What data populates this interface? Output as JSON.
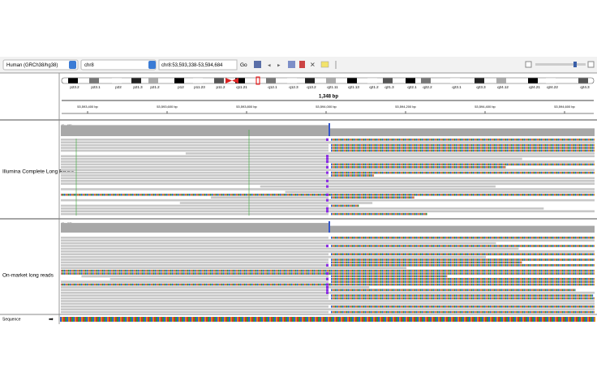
{
  "toolbar": {
    "genome": "Human (GRCh38/hg38)",
    "chromosome": "chr8",
    "locus": "chr8:53,593,338-53,594,684",
    "go": "Go"
  },
  "ideogram": {
    "bands": [
      "p23.2",
      "p23.1",
      "p22",
      "p21.3",
      "p21.2",
      "p12",
      "p11.23",
      "p11.2",
      "q11.21",
      "q12.1",
      "q12.3",
      "q13.2",
      "q21.11",
      "q21.13",
      "q21.2",
      "q21.3",
      "q22.1",
      "q22.2",
      "q23.1",
      "q23.3",
      "q24.12",
      "q24.21",
      "q24.22",
      "q24.3"
    ]
  },
  "ruler": {
    "span": "1,348 bp",
    "ticks": [
      "53,593,400 bp",
      "53,593,600 bp",
      "53,593,800 bp",
      "53,594,000 bp",
      "53,594,200 bp",
      "53,594,400 bp",
      "53,594,600 bp"
    ]
  },
  "tracks": [
    {
      "name": "Illumina Complete Long Reads",
      "range": "[0 - 65]"
    },
    {
      "name": "On-market long reads",
      "range": "[0 - 37]"
    }
  ],
  "sequence_track": {
    "name": "Sequence"
  }
}
